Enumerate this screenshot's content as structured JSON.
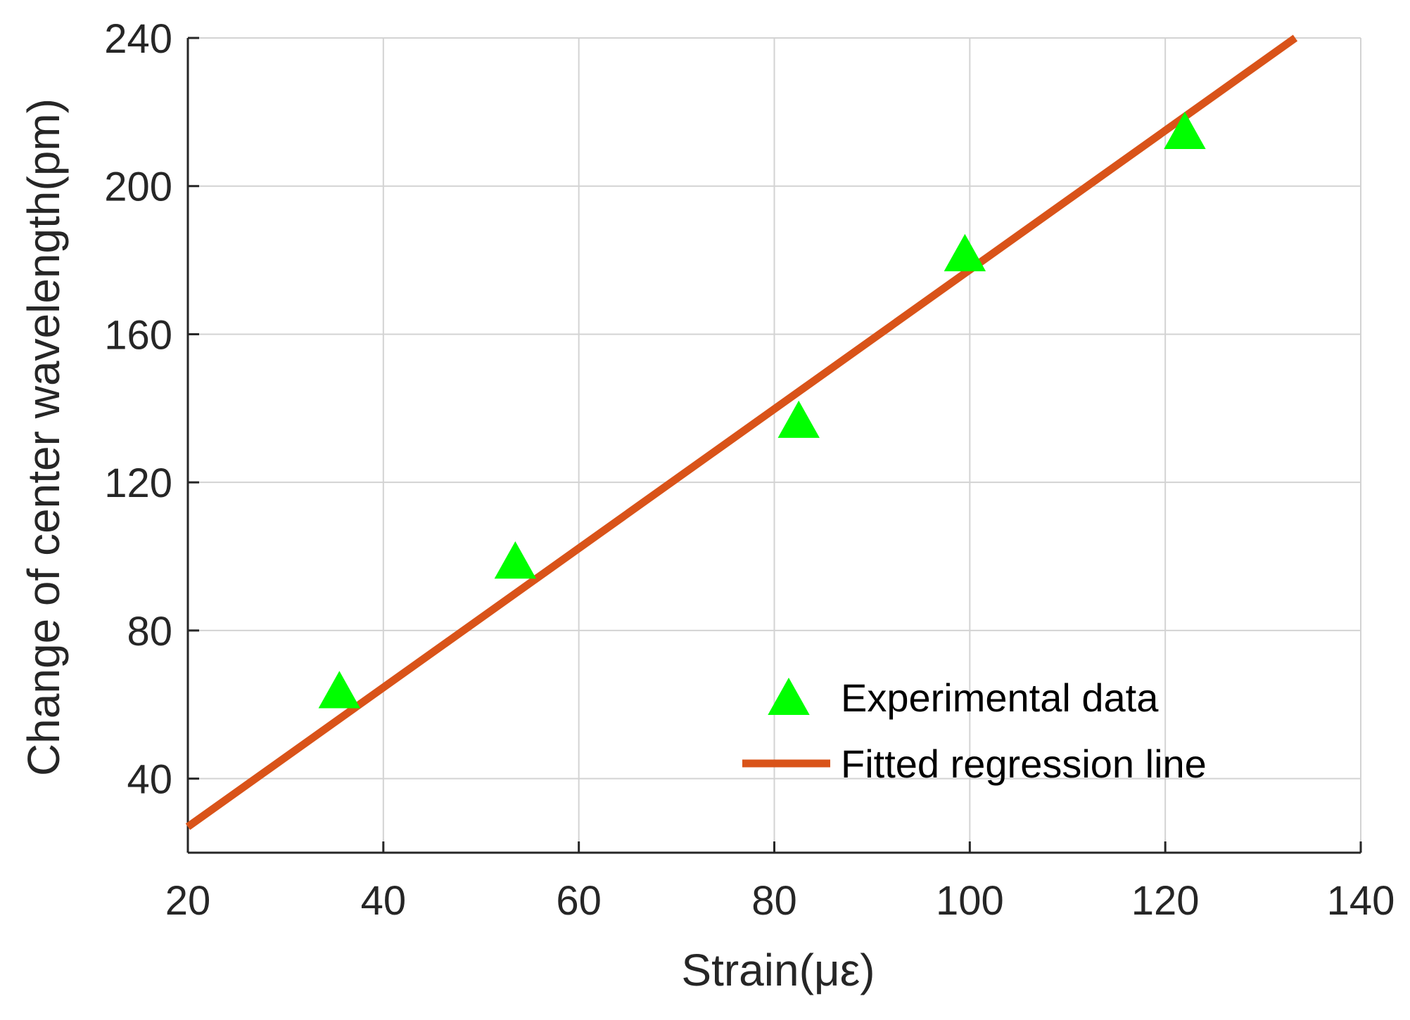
{
  "chart_data": {
    "type": "scatter",
    "title": "",
    "xlabel": "Strain(με)",
    "ylabel": "Change of center wavelength(pm)",
    "xlim": [
      20,
      140
    ],
    "ylim": [
      20,
      240
    ],
    "xticks": [
      20,
      40,
      60,
      80,
      100,
      120,
      140
    ],
    "yticks": [
      40,
      80,
      120,
      160,
      200,
      240
    ],
    "grid": true,
    "legend_position": "bottom-right",
    "series": [
      {
        "name": "Experimental data",
        "kind": "scatter",
        "marker": "triangle-up",
        "color": "#00ff00",
        "x": [
          35.5,
          53.5,
          82.5,
          99.5,
          122
        ],
        "y": [
          63,
          98,
          136,
          181,
          214
        ]
      },
      {
        "name": "Fitted regression line",
        "kind": "line",
        "color": "#d95319",
        "x": [
          20,
          133.3
        ],
        "y": [
          27,
          240
        ]
      }
    ]
  },
  "colors": {
    "axis": "#262626",
    "grid": "#d3d3d3"
  }
}
